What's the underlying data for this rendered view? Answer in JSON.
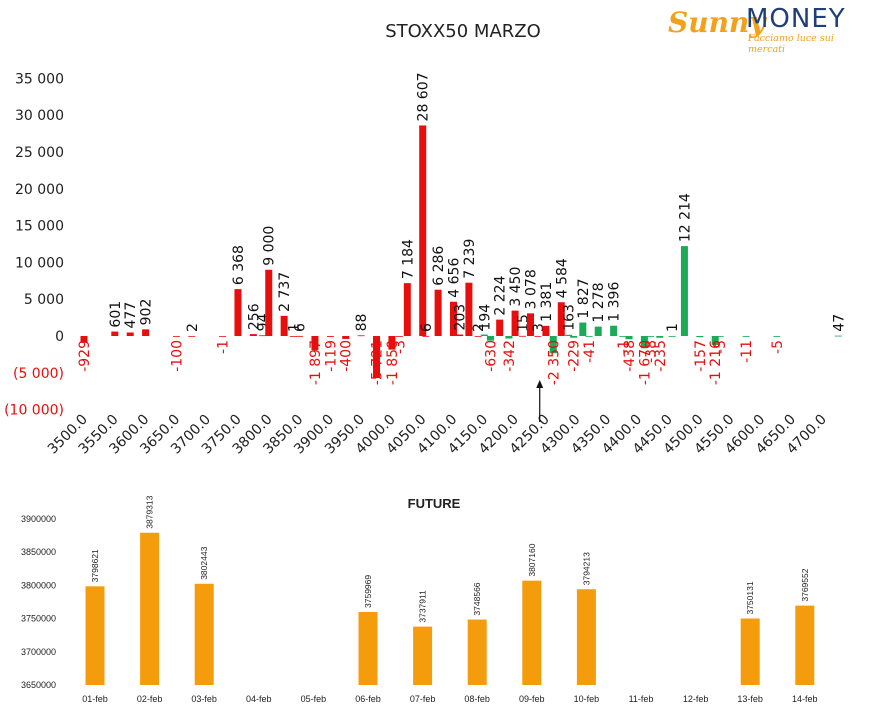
{
  "logo": {
    "sunny": "Sunny",
    "money": "MONEY",
    "tagline": "Facciamo luce sui mercati"
  },
  "chart_data": [
    {
      "type": "bar",
      "title": "STOXX50 MARZO",
      "ylim": [
        -10000,
        35000
      ],
      "y_ticks": [
        {
          "value": 35000,
          "label": "35 000"
        },
        {
          "value": 30000,
          "label": "30 000"
        },
        {
          "value": 25000,
          "label": "25 000"
        },
        {
          "value": 20000,
          "label": "20 000"
        },
        {
          "value": 15000,
          "label": "15 000"
        },
        {
          "value": 10000,
          "label": "10 000"
        },
        {
          "value": 5000,
          "label": "5 000"
        },
        {
          "value": 0,
          "label": "0"
        },
        {
          "value": -5000,
          "label": "(5 000)"
        },
        {
          "value": -10000,
          "label": "(10 000)"
        }
      ],
      "x_ticks": [
        "3500.0",
        "3550.0",
        "3600.0",
        "3650.0",
        "3700.0",
        "3750.0",
        "3800.0",
        "3850.0",
        "3900.0",
        "3950.0",
        "4000.0",
        "4050.0",
        "4100.0",
        "4150.0",
        "4200.0",
        "4250.0",
        "4300.0",
        "4350.0",
        "4400.0",
        "4450.0",
        "4500.0",
        "4550.0",
        "4600.0",
        "4650.0",
        "4700.0"
      ],
      "series": [
        {
          "color": "#e80e0e",
          "points": [
            {
              "x": 3500,
              "y": -929,
              "label": "-929"
            },
            {
              "x": 3550,
              "y": 601,
              "label": "601"
            },
            {
              "x": 3575,
              "y": 477,
              "label": "477"
            },
            {
              "x": 3600,
              "y": 902,
              "label": "902"
            },
            {
              "x": 3650,
              "y": -100,
              "label": "-100"
            },
            {
              "x": 3675,
              "y": 2,
              "label": "2"
            },
            {
              "x": 3725,
              "y": -1,
              "label": "-1"
            },
            {
              "x": 3750,
              "y": 6368,
              "label": "6 368"
            },
            {
              "x": 3775,
              "y": 256,
              "label": "256"
            },
            {
              "x": 3790,
              "y": 94,
              "label": "94"
            },
            {
              "x": 3800,
              "y": 9000,
              "label": "9 000"
            },
            {
              "x": 3825,
              "y": 2737,
              "label": "2 737"
            },
            {
              "x": 3840,
              "y": 1,
              "label": "1"
            },
            {
              "x": 3850,
              "y": 6,
              "label": "6"
            },
            {
              "x": 3875,
              "y": -1897,
              "label": "-1 897"
            },
            {
              "x": 3900,
              "y": -119,
              "label": "-119"
            },
            {
              "x": 3925,
              "y": -400,
              "label": "-400"
            },
            {
              "x": 3950,
              "y": 88,
              "label": "88"
            },
            {
              "x": 3975,
              "y": -5721,
              "label": "-5 721"
            },
            {
              "x": 4000,
              "y": -1850,
              "label": "-1 850"
            },
            {
              "x": 4012,
              "y": -3,
              "label": "-3"
            },
            {
              "x": 4025,
              "y": 7184,
              "label": "7 184"
            },
            {
              "x": 4050,
              "y": 28607,
              "label": "28 607"
            },
            {
              "x": 4055,
              "y": 6,
              "label": "6"
            },
            {
              "x": 4075,
              "y": 6286,
              "label": "6 286"
            },
            {
              "x": 4100,
              "y": 4656,
              "label": "4 656"
            },
            {
              "x": 4110,
              "y": 203,
              "label": "203"
            },
            {
              "x": 4125,
              "y": 7239,
              "label": "7 239"
            },
            {
              "x": 4140,
              "y": 2,
              "label": "2"
            },
            {
              "x": 4175,
              "y": 2224,
              "label": "2 224"
            },
            {
              "x": 4200,
              "y": 3450,
              "label": "3 450"
            },
            {
              "x": 4212,
              "y": 15,
              "label": "15"
            },
            {
              "x": 4225,
              "y": 3078,
              "label": "3 078"
            },
            {
              "x": 4237,
              "y": 3,
              "label": "3"
            },
            {
              "x": 4250,
              "y": 1381,
              "label": "1 381"
            },
            {
              "x": 4275,
              "y": 4584,
              "label": "4 584"
            }
          ]
        },
        {
          "color": "#1aaa58",
          "points": [
            {
              "x": 4150,
              "y": 194,
              "label": "194"
            },
            {
              "x": 4160,
              "y": -630,
              "label": "-630"
            },
            {
              "x": 4190,
              "y": -342,
              "label": "-342"
            },
            {
              "x": 4262,
              "y": -2350,
              "label": "-2 350"
            },
            {
              "x": 4287,
              "y": 163,
              "label": "163"
            },
            {
              "x": 4295,
              "y": -229,
              "label": "-229"
            },
            {
              "x": 4310,
              "y": 1827,
              "label": "1 827"
            },
            {
              "x": 4320,
              "y": -41,
              "label": "-41"
            },
            {
              "x": 4335,
              "y": 1278,
              "label": "1 278"
            },
            {
              "x": 4360,
              "y": 1396,
              "label": "1 396"
            },
            {
              "x": 4375,
              "y": -1,
              "label": "-1"
            },
            {
              "x": 4385,
              "y": -438,
              "label": "-438"
            },
            {
              "x": 4410,
              "y": -1670,
              "label": "-1 670"
            },
            {
              "x": 4420,
              "y": -38,
              "label": "-38"
            },
            {
              "x": 4435,
              "y": -235,
              "label": "-235"
            },
            {
              "x": 4455,
              "y": 1,
              "label": "1"
            },
            {
              "x": 4475,
              "y": 12214,
              "label": "12 214"
            },
            {
              "x": 4500,
              "y": -157,
              "label": "-157"
            },
            {
              "x": 4525,
              "y": -1216,
              "label": "-1 216"
            },
            {
              "x": 4533,
              "y": -5,
              "label": "-5"
            },
            {
              "x": 4575,
              "y": -11,
              "label": "-11"
            },
            {
              "x": 4625,
              "y": -5,
              "label": "-5"
            },
            {
              "x": 4725,
              "y": 47,
              "label": "47"
            }
          ]
        }
      ],
      "annotation": {
        "type": "arrow",
        "x": 4240
      }
    },
    {
      "type": "bar",
      "title": "FUTURE",
      "color": "#f59c0d",
      "ylim": [
        3650000,
        3900000
      ],
      "y_ticks": [
        {
          "value": 3900000,
          "label": "3900000"
        },
        {
          "value": 3850000,
          "label": "3850000"
        },
        {
          "value": 3800000,
          "label": "3800000"
        },
        {
          "value": 3750000,
          "label": "3750000"
        },
        {
          "value": 3700000,
          "label": "3700000"
        },
        {
          "value": 3650000,
          "label": "3650000"
        }
      ],
      "categories": [
        "01-feb",
        "02-feb",
        "03-feb",
        "04-feb",
        "05-feb",
        "06-feb",
        "07-feb",
        "08-feb",
        "09-feb",
        "10-feb",
        "11-feb",
        "12-feb",
        "13-feb",
        "14-feb"
      ],
      "values": [
        3798621,
        3879313,
        3802443,
        null,
        null,
        3759969,
        3737911,
        3748566,
        3807160,
        3794213,
        null,
        null,
        3750131,
        3769552
      ],
      "value_labels": [
        "3798621",
        "3879313",
        "3802443",
        "",
        "",
        "3759969",
        "3737911",
        "3748566",
        "3807160",
        "3794213",
        "",
        "",
        "3750131",
        "3769552"
      ]
    }
  ]
}
